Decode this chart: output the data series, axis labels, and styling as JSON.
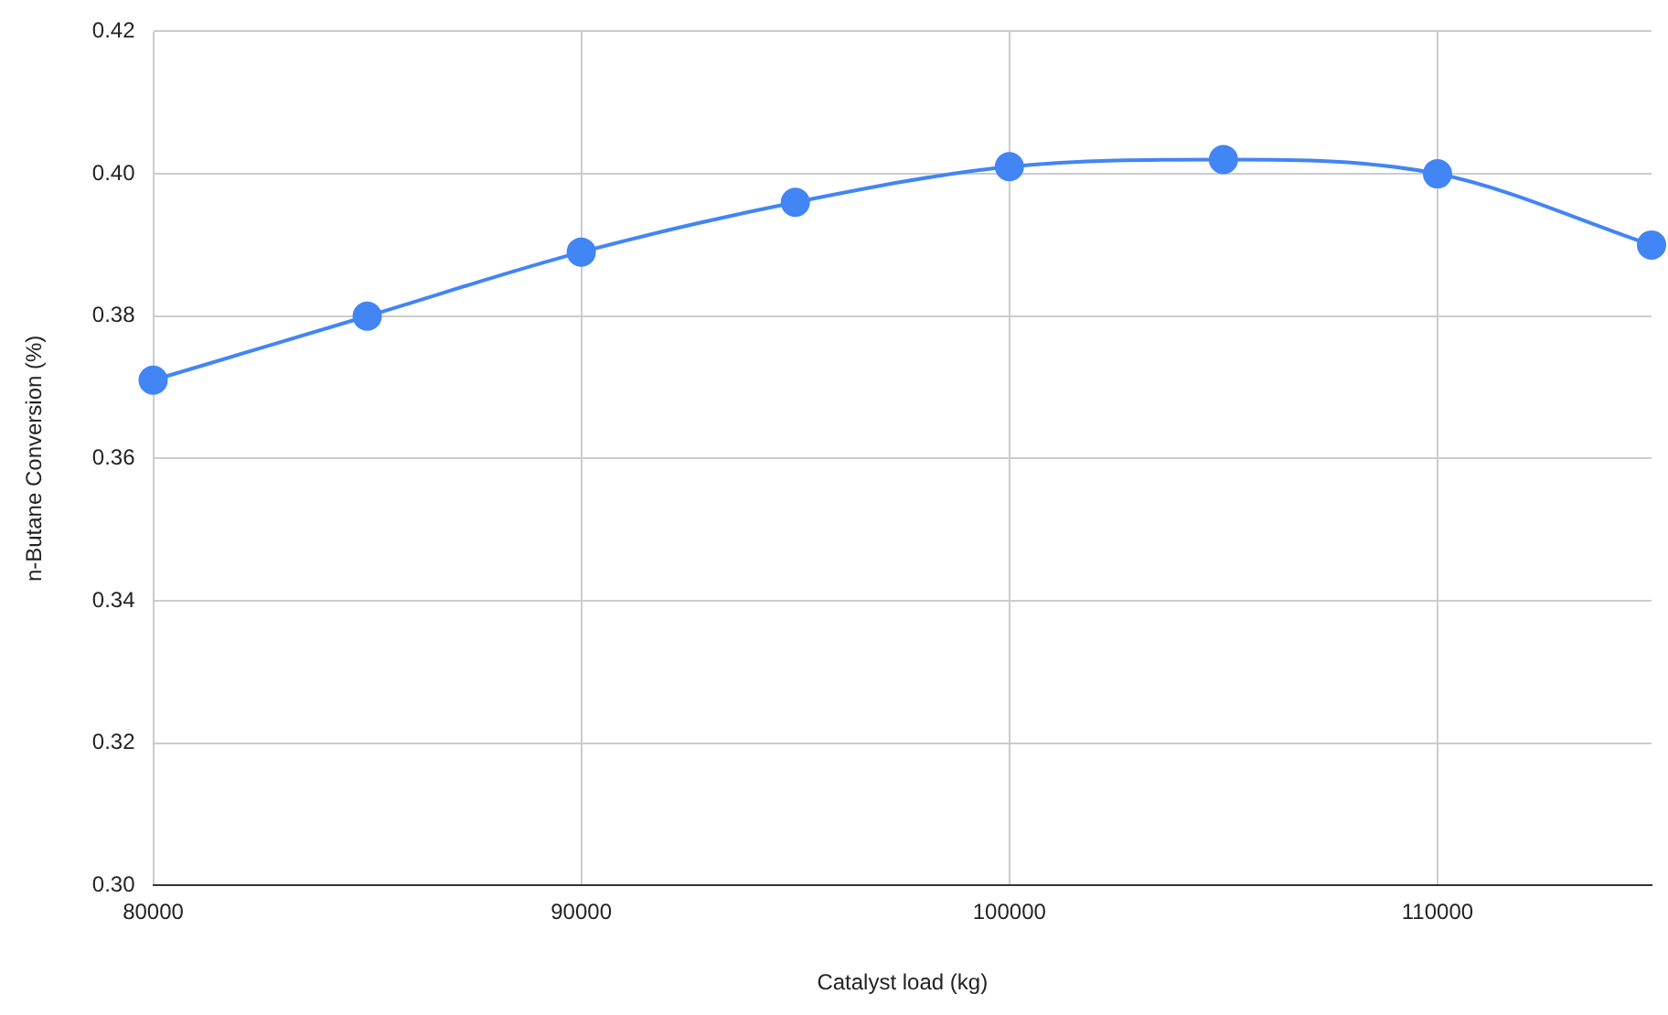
{
  "chart_data": {
    "type": "line",
    "xlabel": "Catalyst load (kg)",
    "ylabel": "n-Butane Conversion (%)",
    "x": [
      80000,
      85000,
      90000,
      95000,
      100000,
      105000,
      110000,
      115000
    ],
    "series": [
      {
        "color": "#4285f4",
        "values": [
          0.371,
          0.38,
          0.389,
          0.396,
          0.401,
          0.402,
          0.4,
          0.39
        ]
      }
    ],
    "xlim": [
      80000,
      115000
    ],
    "xticks": [
      80000,
      90000,
      100000,
      110000
    ],
    "ylim": [
      0.3,
      0.42
    ],
    "yticks": [
      {
        "value": 0.3,
        "label": "0.30"
      },
      {
        "value": 0.32,
        "label": "0.32"
      },
      {
        "value": 0.34,
        "label": "0.34"
      },
      {
        "value": 0.36,
        "label": "0.36"
      },
      {
        "value": 0.38,
        "label": "0.38"
      },
      {
        "value": 0.4,
        "label": "0.40"
      },
      {
        "value": 0.42,
        "label": "0.42"
      }
    ],
    "grid": true,
    "legend": false,
    "marker": "circle",
    "line_style": "solid"
  }
}
